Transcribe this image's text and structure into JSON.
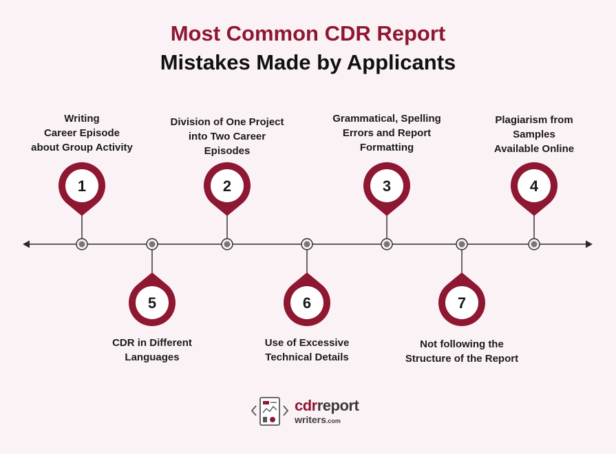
{
  "title": {
    "line1": "Most Common CDR Report",
    "line2": "Mistakes Made by Applicants"
  },
  "colors": {
    "accent": "#8e1731",
    "background": "#fbf2f6",
    "text": "#1a1a1a"
  },
  "steps": [
    {
      "number": "1",
      "position": "above",
      "label": [
        "Writing",
        "Career Episode",
        "about Group Activity"
      ]
    },
    {
      "number": "5",
      "position": "below",
      "label": [
        "CDR in Different",
        "Languages"
      ]
    },
    {
      "number": "2",
      "position": "above",
      "label": [
        "Division of One Project",
        "into Two Career",
        "Episodes"
      ]
    },
    {
      "number": "6",
      "position": "below",
      "label": [
        "Use of Excessive",
        "Technical Details"
      ]
    },
    {
      "number": "3",
      "position": "above",
      "label": [
        "Grammatical, Spelling",
        "Errors and Report",
        "Formatting"
      ]
    },
    {
      "number": "7",
      "position": "below",
      "label": [
        "Not following the",
        "Structure of the Report"
      ]
    },
    {
      "number": "4",
      "position": "above",
      "label": [
        "Plagiarism from",
        "Samples",
        "Available Online"
      ]
    }
  ],
  "logo": {
    "word_accent": "cdr",
    "word_rest": "report",
    "sub": "writers",
    "sub_suffix": ".com",
    "icon": "document-chart-icon"
  }
}
